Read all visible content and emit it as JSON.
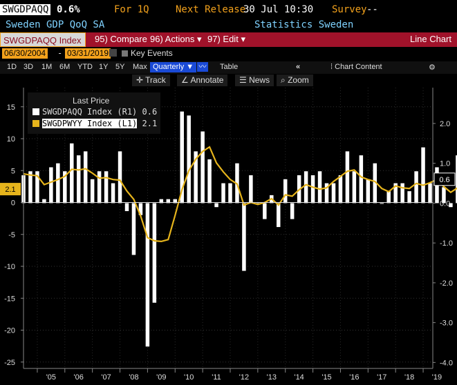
{
  "header": {
    "ticker": "SWGDPAQQ",
    "last_value": "0.6%",
    "freq": "For 1Q",
    "next_release_label": "Next Release",
    "next_release_value": "30 Jul 10:30",
    "survey_label": "Survey",
    "survey_value": "--",
    "description": "Sweden GDP QoQ SA",
    "source": "Statistics Sweden"
  },
  "toolbar": {
    "index_label": "SWGDPAQQ Index",
    "compare": "95) Compare",
    "actions": "96) Actions",
    "edit": "97) Edit",
    "chart_type": "Line Chart"
  },
  "dates": {
    "start": "06/30/2004",
    "end": "03/31/2019",
    "key_events": "Key Events"
  },
  "periods": {
    "items": [
      "1D",
      "3D",
      "1M",
      "6M",
      "YTD",
      "1Y",
      "5Y",
      "Max"
    ],
    "selected": "Quarterly",
    "table": "Table",
    "chart_content": "Chart Content"
  },
  "tools": {
    "track": "Track",
    "annotate": "Annotate",
    "news": "News",
    "zoom": "Zoom"
  },
  "legend": {
    "title": "Last Price",
    "entries": [
      {
        "label": "SWGDPAQQ Index  (R1)",
        "value": "0.6",
        "color": "#ffffff"
      },
      {
        "label": "SWGDPWYY Index  (L1)",
        "value": "2.1",
        "color": "#e6b41c"
      }
    ]
  },
  "chart_data": {
    "type": "bar",
    "left_axis": {
      "ticks": [
        "15",
        "10",
        "5",
        "0",
        "-5",
        "-10",
        "-15",
        "-20",
        "-25"
      ],
      "range": [
        -26,
        18
      ]
    },
    "right_axis": {
      "ticks": [
        "2.0",
        "1.0",
        "0.0",
        "-1.0",
        "-2.0",
        "-3.0",
        "-4.0"
      ],
      "range": [
        -4.15,
        2.9
      ]
    },
    "x_labels": [
      "'05",
      "'06",
      "'07",
      "'08",
      "'09",
      "'10",
      "'11",
      "'12",
      "'13",
      "'14",
      "'15",
      "'16",
      "'17",
      "'18",
      "'19"
    ],
    "x_start_year": 2004.5,
    "x_end_year": 2019.35,
    "bars_series": {
      "name": "SWGDPAQQ Index",
      "axis": "right",
      "start": "2004Q2",
      "values": [
        0.7,
        0.8,
        0.8,
        0.1,
        0.9,
        1.0,
        0.8,
        1.5,
        1.2,
        1.3,
        0.6,
        0.8,
        0.8,
        0.5,
        1.3,
        -0.2,
        -1.3,
        -0.3,
        -3.6,
        -2.5,
        0.1,
        0.1,
        0.1,
        2.3,
        2.2,
        1.3,
        1.8,
        1.1,
        -0.1,
        0.5,
        0.5,
        1.0,
        -1.7,
        0.7,
        0.0,
        -0.4,
        0.2,
        -0.6,
        0.6,
        -0.4,
        0.7,
        0.8,
        0.7,
        0.8,
        0.5,
        0.5,
        0.7,
        1.3,
        0.8,
        1.2,
        0.6,
        1.0,
        0.0,
        0.3,
        0.5,
        0.5,
        0.3,
        0.8,
        1.4,
        0.5,
        0.9,
        0.4,
        -0.1,
        1.2,
        0.6
      ]
    },
    "line_series": {
      "name": "SWGDPWYY Index",
      "axis": "left",
      "start": "2004Q2",
      "values": [
        4.5,
        4.3,
        4.2,
        2.8,
        3.2,
        3.6,
        4.1,
        5.2,
        5.1,
        5.3,
        4.6,
        3.8,
        3.9,
        3.6,
        3.5,
        1.8,
        0.5,
        -2.1,
        -5.5,
        -6.0,
        -6.1,
        -5.8,
        -2.0,
        2.0,
        5.0,
        6.8,
        8.0,
        8.7,
        6.2,
        4.8,
        3.6,
        2.9,
        -0.4,
        0.0,
        -0.3,
        0.0,
        0.6,
        -0.4,
        1.2,
        1.0,
        2.0,
        2.8,
        2.4,
        2.1,
        2.3,
        3.3,
        4.1,
        4.9,
        5.1,
        4.0,
        3.6,
        3.3,
        2.2,
        1.7,
        2.6,
        2.3,
        2.2,
        3.0,
        2.7,
        3.1,
        3.6,
        2.5,
        1.6,
        2.3,
        2.1
      ]
    }
  },
  "axis_badges": {
    "left": "2.1",
    "right": "0.6"
  }
}
